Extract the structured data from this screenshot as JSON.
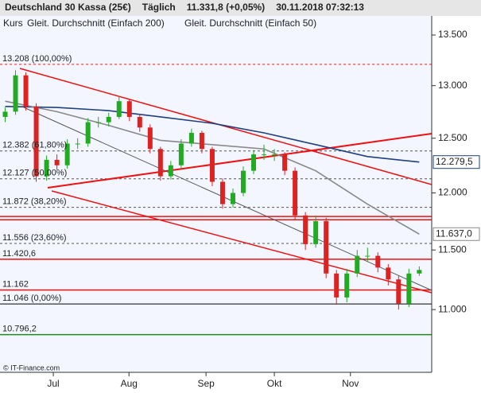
{
  "chart_data": {
    "type": "candlestick",
    "title": "Deutschland 30 Kassa (25€)",
    "period": "Täglich",
    "last_price": "11.331,8 (+0,05%)",
    "timestamp": "30.11.2018 07:32:13",
    "legend_label": "Kurs",
    "source": "© IT-Finance.com",
    "ohlc": [
      [
        12700,
        12790,
        12650,
        12750
      ],
      [
        12750,
        13150,
        12720,
        13100
      ],
      [
        13100,
        13130,
        12760,
        12800
      ],
      [
        12800,
        12830,
        12100,
        12150
      ],
      [
        12150,
        12340,
        12110,
        12300
      ],
      [
        12300,
        12350,
        12210,
        12250
      ],
      [
        12250,
        12490,
        12220,
        12450
      ],
      [
        12450,
        12500,
        12400,
        12450
      ],
      [
        12450,
        12690,
        12420,
        12650
      ],
      [
        12650,
        12700,
        12600,
        12650
      ],
      [
        12650,
        12740,
        12610,
        12700
      ],
      [
        12700,
        12900,
        12680,
        12850
      ],
      [
        12850,
        12870,
        12660,
        12700
      ],
      [
        12700,
        12730,
        12560,
        12600
      ],
      [
        12600,
        12630,
        12360,
        12400
      ],
      [
        12400,
        12420,
        12110,
        12150
      ],
      [
        12150,
        12290,
        12120,
        12250
      ],
      [
        12250,
        12490,
        12220,
        12450
      ],
      [
        12450,
        12590,
        12420,
        12550
      ],
      [
        12550,
        12570,
        12360,
        12400
      ],
      [
        12400,
        12420,
        12060,
        12100
      ],
      [
        12100,
        12130,
        11860,
        11900
      ],
      [
        11900,
        12040,
        11870,
        12000
      ],
      [
        12000,
        12240,
        11970,
        12200
      ],
      [
        12200,
        12390,
        12170,
        12350
      ],
      [
        12350,
        12440,
        12300,
        12350
      ],
      [
        12350,
        12400,
        12290,
        12350
      ],
      [
        12350,
        12370,
        12160,
        12200
      ],
      [
        12200,
        12230,
        11760,
        11800
      ],
      [
        11800,
        11830,
        11500,
        11550
      ],
      [
        11550,
        11800,
        11520,
        11750
      ],
      [
        11750,
        11780,
        11260,
        11300
      ],
      [
        11300,
        11330,
        11040,
        11100
      ],
      [
        11100,
        11340,
        11060,
        11300
      ],
      [
        11300,
        11500,
        11270,
        11450
      ],
      [
        11450,
        11520,
        11400,
        11450
      ],
      [
        11450,
        11480,
        11310,
        11350
      ],
      [
        11350,
        11380,
        11200,
        11250
      ],
      [
        11250,
        11280,
        11000,
        11050
      ],
      [
        11050,
        11340,
        11020,
        11300
      ],
      [
        11300,
        11360,
        11280,
        11330
      ]
    ],
    "up_color": "#22aa22",
    "down_color": "#dd2222",
    "xticks": [
      {
        "value": 4.65,
        "label": "Jul"
      },
      {
        "value": 11.96,
        "label": "Aug"
      },
      {
        "value": 19.4,
        "label": "Sep"
      },
      {
        "value": 26.0,
        "label": "Okt"
      },
      {
        "value": 33.35,
        "label": "Nov"
      }
    ],
    "xlim": [
      -0.5,
      41.2
    ],
    "series": [
      {
        "name": "Gleit. Durchschnitt (Einfach 200)",
        "color": "#1f3f7f",
        "x": [
          0,
          5,
          10,
          15,
          20,
          25,
          30,
          35,
          40
        ],
        "values": [
          12800,
          12790,
          12760,
          12700,
          12640,
          12550,
          12440,
          12330,
          12279.5
        ],
        "last_value_label": "12.279,5"
      },
      {
        "name": "Gleit. Durchschnitt (Einfach 50)",
        "color": "#888888",
        "x": [
          0,
          5,
          10,
          15,
          20,
          25,
          30,
          35,
          40
        ],
        "values": [
          12850,
          12750,
          12620,
          12480,
          12440,
          12400,
          12200,
          11900,
          11637
        ],
        "last_value_label": "11.637,0"
      }
    ],
    "levels": [
      {
        "value": 13208,
        "label": "13.208 (100,00%)",
        "color": "#dd2222",
        "style": "dashed"
      },
      {
        "value": 12382,
        "label": "12.382 (61,80%)",
        "color": "#555555",
        "style": "dashed"
      },
      {
        "value": 12127,
        "label": "12.127 (50,00%)",
        "color": "#555555",
        "style": "dashed"
      },
      {
        "value": 11872,
        "label": "11.872 (38,20%)",
        "color": "#555555",
        "style": "dashed"
      },
      {
        "value": 11791,
        "color": "#ee1111",
        "style": "solid"
      },
      {
        "value": 11762,
        "color": "#ee1111",
        "style": "solid"
      },
      {
        "value": 11556,
        "label": "11.556 (23,60%)",
        "color": "#555555",
        "style": "dashed"
      },
      {
        "value": 11420.6,
        "label": "11.420,6",
        "color": "#ee1111",
        "style": "solid"
      },
      {
        "value": 11162,
        "label": "11.162",
        "color": "#ee1111",
        "style": "solid"
      },
      {
        "value": 11046,
        "label": "11.046 (0,00%)",
        "color": "#555555",
        "style": "solid"
      },
      {
        "value": 10796.2,
        "label": "10.796,2",
        "color": "#228822",
        "style": "solid"
      }
    ],
    "ylim": [
      10497,
      13613
    ],
    "log_scale": true,
    "yticks": [
      {
        "value": 11000,
        "label": "11.000"
      },
      {
        "value": 11500,
        "label": "11.500"
      },
      {
        "value": 12000,
        "label": "12.000"
      },
      {
        "value": 12500,
        "label": "12.500"
      },
      {
        "value": 13000,
        "label": "13.000"
      },
      {
        "value": 13500,
        "label": "13.500"
      }
    ]
  }
}
